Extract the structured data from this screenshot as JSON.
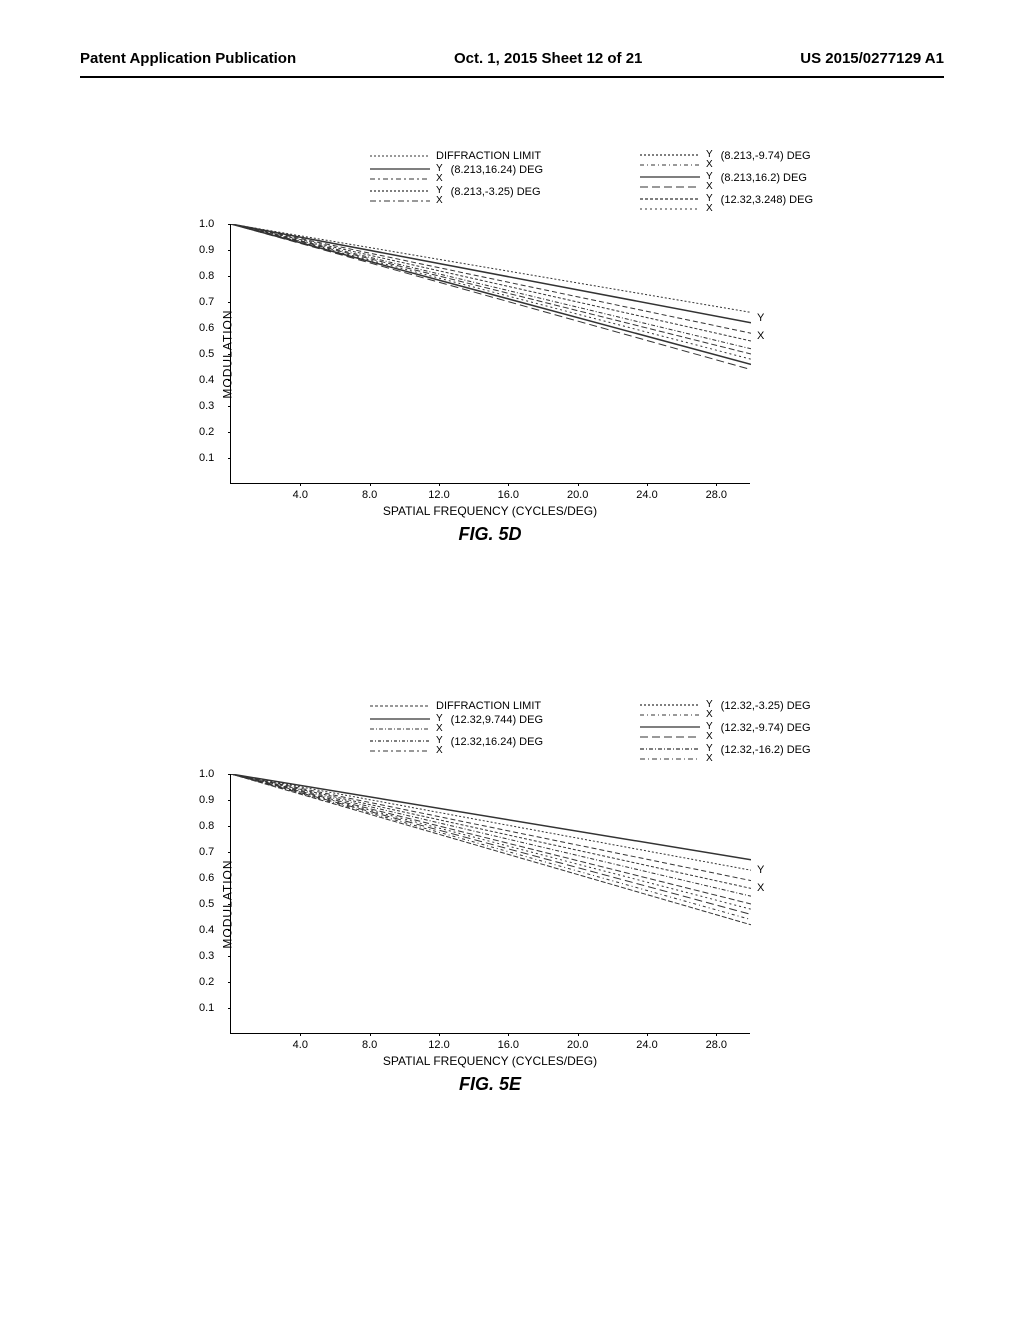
{
  "header": {
    "left": "Patent Application Publication",
    "center": "Oct. 1, 2015  Sheet 12 of 21",
    "right": "US 2015/0277129 A1"
  },
  "chart_5d": {
    "type": "line",
    "title": "FIG. 5D",
    "y_axis_label": "MODULATION",
    "x_axis_label": "SPATIAL FREQUENCY (CYCLES/DEG)",
    "x_ticks": [
      4.0,
      8.0,
      12.0,
      16.0,
      20.0,
      24.0,
      28.0
    ],
    "y_ticks": [
      0.1,
      0.2,
      0.3,
      0.4,
      0.5,
      0.6,
      0.7,
      0.8,
      0.9,
      1.0
    ],
    "xlim": [
      0,
      30
    ],
    "ylim": [
      0,
      1.0
    ],
    "background_color": "#ffffff",
    "line_color": "#333333",
    "legend": [
      {
        "label": "DIFFRACTION LIMIT",
        "type": "single",
        "dash": "2,2"
      },
      {
        "label": "(8.213,16.24) DEG",
        "type": "yx",
        "dash_y": "none",
        "dash_x": "5,3,2,3"
      },
      {
        "label": "(8.213,-3.25) DEG",
        "type": "yx",
        "dash_y": "2,2",
        "dash_x": "6,3,2,3"
      },
      {
        "label": "(8.213,-9.74) DEG",
        "type": "yx",
        "dash_y": "2,2",
        "dash_x": "4,3,1,3"
      },
      {
        "label": "(8.213,16.2) DEG",
        "type": "yx",
        "dash_y": "none",
        "dash_x": "8,4"
      },
      {
        "label": "(12.32,3.248) DEG",
        "type": "yx",
        "dash_y": "3,2",
        "dash_x": "2,3"
      }
    ],
    "series": [
      {
        "start_y": 1.0,
        "end_y": 0.66,
        "dash": "2,2",
        "width": 1
      },
      {
        "start_y": 1.0,
        "end_y": 0.62,
        "dash": "none",
        "width": 1.5
      },
      {
        "start_y": 1.0,
        "end_y": 0.58,
        "dash": "5,3",
        "width": 1
      },
      {
        "start_y": 1.0,
        "end_y": 0.55,
        "dash": "3,2",
        "width": 1
      },
      {
        "start_y": 1.0,
        "end_y": 0.52,
        "dash": "4,2,1,2",
        "width": 1
      },
      {
        "start_y": 1.0,
        "end_y": 0.5,
        "dash": "6,3",
        "width": 1
      },
      {
        "start_y": 1.0,
        "end_y": 0.48,
        "dash": "2,3",
        "width": 1
      },
      {
        "start_y": 1.0,
        "end_y": 0.46,
        "dash": "none",
        "width": 1.5
      },
      {
        "start_y": 1.0,
        "end_y": 0.44,
        "dash": "8,4",
        "width": 1
      }
    ],
    "end_labels": [
      {
        "text": "Y",
        "y": 0.64
      },
      {
        "text": "X",
        "y": 0.57
      }
    ]
  },
  "chart_5e": {
    "type": "line",
    "title": "FIG. 5E",
    "y_axis_label": "MODULATION",
    "x_axis_label": "SPATIAL FREQUENCY (CYCLES/DEG)",
    "x_ticks": [
      4.0,
      8.0,
      12.0,
      16.0,
      20.0,
      24.0,
      28.0
    ],
    "y_ticks": [
      0.1,
      0.2,
      0.3,
      0.4,
      0.5,
      0.6,
      0.7,
      0.8,
      0.9,
      1.0
    ],
    "xlim": [
      0,
      30
    ],
    "ylim": [
      0,
      1.0
    ],
    "background_color": "#ffffff",
    "line_color": "#333333",
    "legend": [
      {
        "label": "DIFFRACTION LIMIT",
        "type": "single",
        "dash": "3,2"
      },
      {
        "label": "(12.32,9.744) DEG",
        "type": "yx",
        "dash_y": "none",
        "dash_x": "4,2,1,2"
      },
      {
        "label": "(12.32,16.24) DEG",
        "type": "yx",
        "dash_y": "3,2,1,2",
        "dash_x": "5,3,2,3"
      },
      {
        "label": "(12.32,-3.25) DEG",
        "type": "yx",
        "dash_y": "2,2",
        "dash_x": "4,3,1,3"
      },
      {
        "label": "(12.32,-9.74) DEG",
        "type": "yx",
        "dash_y": "none",
        "dash_x": "8,4"
      },
      {
        "label": "(12.32,-16.2) DEG",
        "type": "yx",
        "dash_y": "4,2,1,2",
        "dash_x": "5,3,1,3"
      }
    ],
    "series": [
      {
        "start_y": 1.0,
        "end_y": 0.67,
        "dash": "none",
        "width": 1.5
      },
      {
        "start_y": 1.0,
        "end_y": 0.63,
        "dash": "2,2",
        "width": 1
      },
      {
        "start_y": 1.0,
        "end_y": 0.59,
        "dash": "5,3",
        "width": 1
      },
      {
        "start_y": 1.0,
        "end_y": 0.56,
        "dash": "3,2",
        "width": 1
      },
      {
        "start_y": 1.0,
        "end_y": 0.53,
        "dash": "4,2,1,2",
        "width": 1
      },
      {
        "start_y": 1.0,
        "end_y": 0.5,
        "dash": "6,3",
        "width": 1
      },
      {
        "start_y": 1.0,
        "end_y": 0.48,
        "dash": "2,3",
        "width": 1
      },
      {
        "start_y": 1.0,
        "end_y": 0.46,
        "dash": "8,4",
        "width": 1
      },
      {
        "start_y": 1.0,
        "end_y": 0.44,
        "dash": "3,3,1,3",
        "width": 1
      },
      {
        "start_y": 1.0,
        "end_y": 0.42,
        "dash": "5,2",
        "width": 1
      }
    ],
    "end_labels": [
      {
        "text": "Y",
        "y": 0.63
      },
      {
        "text": "X",
        "y": 0.56
      }
    ]
  }
}
